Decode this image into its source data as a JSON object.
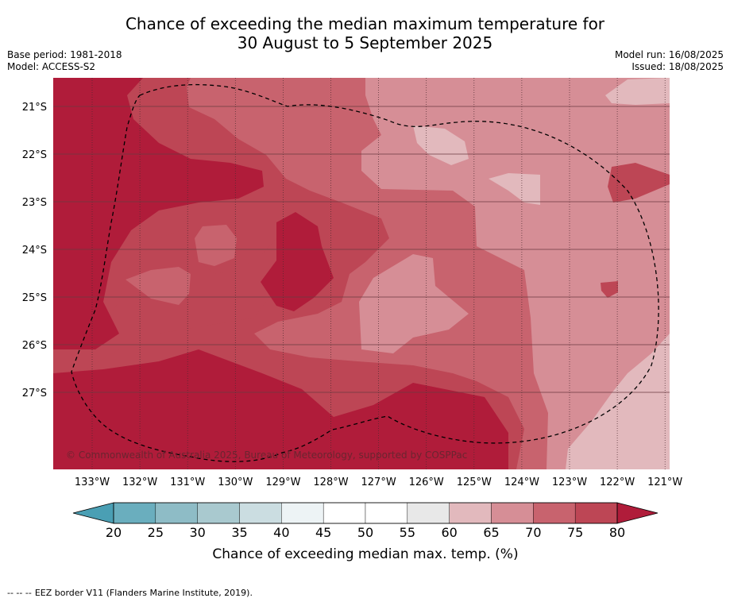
{
  "title": {
    "line1": "Chance of exceeding the median maximum temperature for",
    "line2": "30 August to 5 September 2025"
  },
  "meta_left": {
    "base_period": "Base period: 1981-2018",
    "model": "Model: ACCESS-S2"
  },
  "meta_right": {
    "model_run": "Model run: 16/08/2025",
    "issued": "Issued: 18/08/2025"
  },
  "map": {
    "lat_labels": [
      "21°S",
      "22°S",
      "23°S",
      "24°S",
      "25°S",
      "26°S",
      "27°S"
    ],
    "lon_labels": [
      "133°W",
      "132°W",
      "131°W",
      "130°W",
      "129°W",
      "128°W",
      "127°W",
      "126°W",
      "125°W",
      "124°W",
      "123°W",
      "122°W",
      "121°W"
    ],
    "copyright": "© Commonwealth of Australia 2025, Bureau of Meteorology, supported by COSPPac"
  },
  "colorbar": {
    "ticks": [
      "20",
      "25",
      "30",
      "35",
      "40",
      "45",
      "50",
      "55",
      "60",
      "65",
      "70",
      "75",
      "80"
    ],
    "colors": [
      "#6aaebe",
      "#8ebcc6",
      "#a9c9cf",
      "#cbdde1",
      "#edf3f5",
      "#ffffff",
      "#ffffff",
      "#e8e8e8",
      "#e2b9bd",
      "#d68e96",
      "#c8636e",
      "#bd4655"
    ],
    "under_color": "#4a9fb4",
    "over_color": "#b01c3a",
    "label": "Chance of exceeding median max. temp. (%)"
  },
  "footer": {
    "legend_dashes": "--  --  --",
    "legend_text": "EEZ border V11 (Flanders Marine Institute, 2019)."
  }
}
